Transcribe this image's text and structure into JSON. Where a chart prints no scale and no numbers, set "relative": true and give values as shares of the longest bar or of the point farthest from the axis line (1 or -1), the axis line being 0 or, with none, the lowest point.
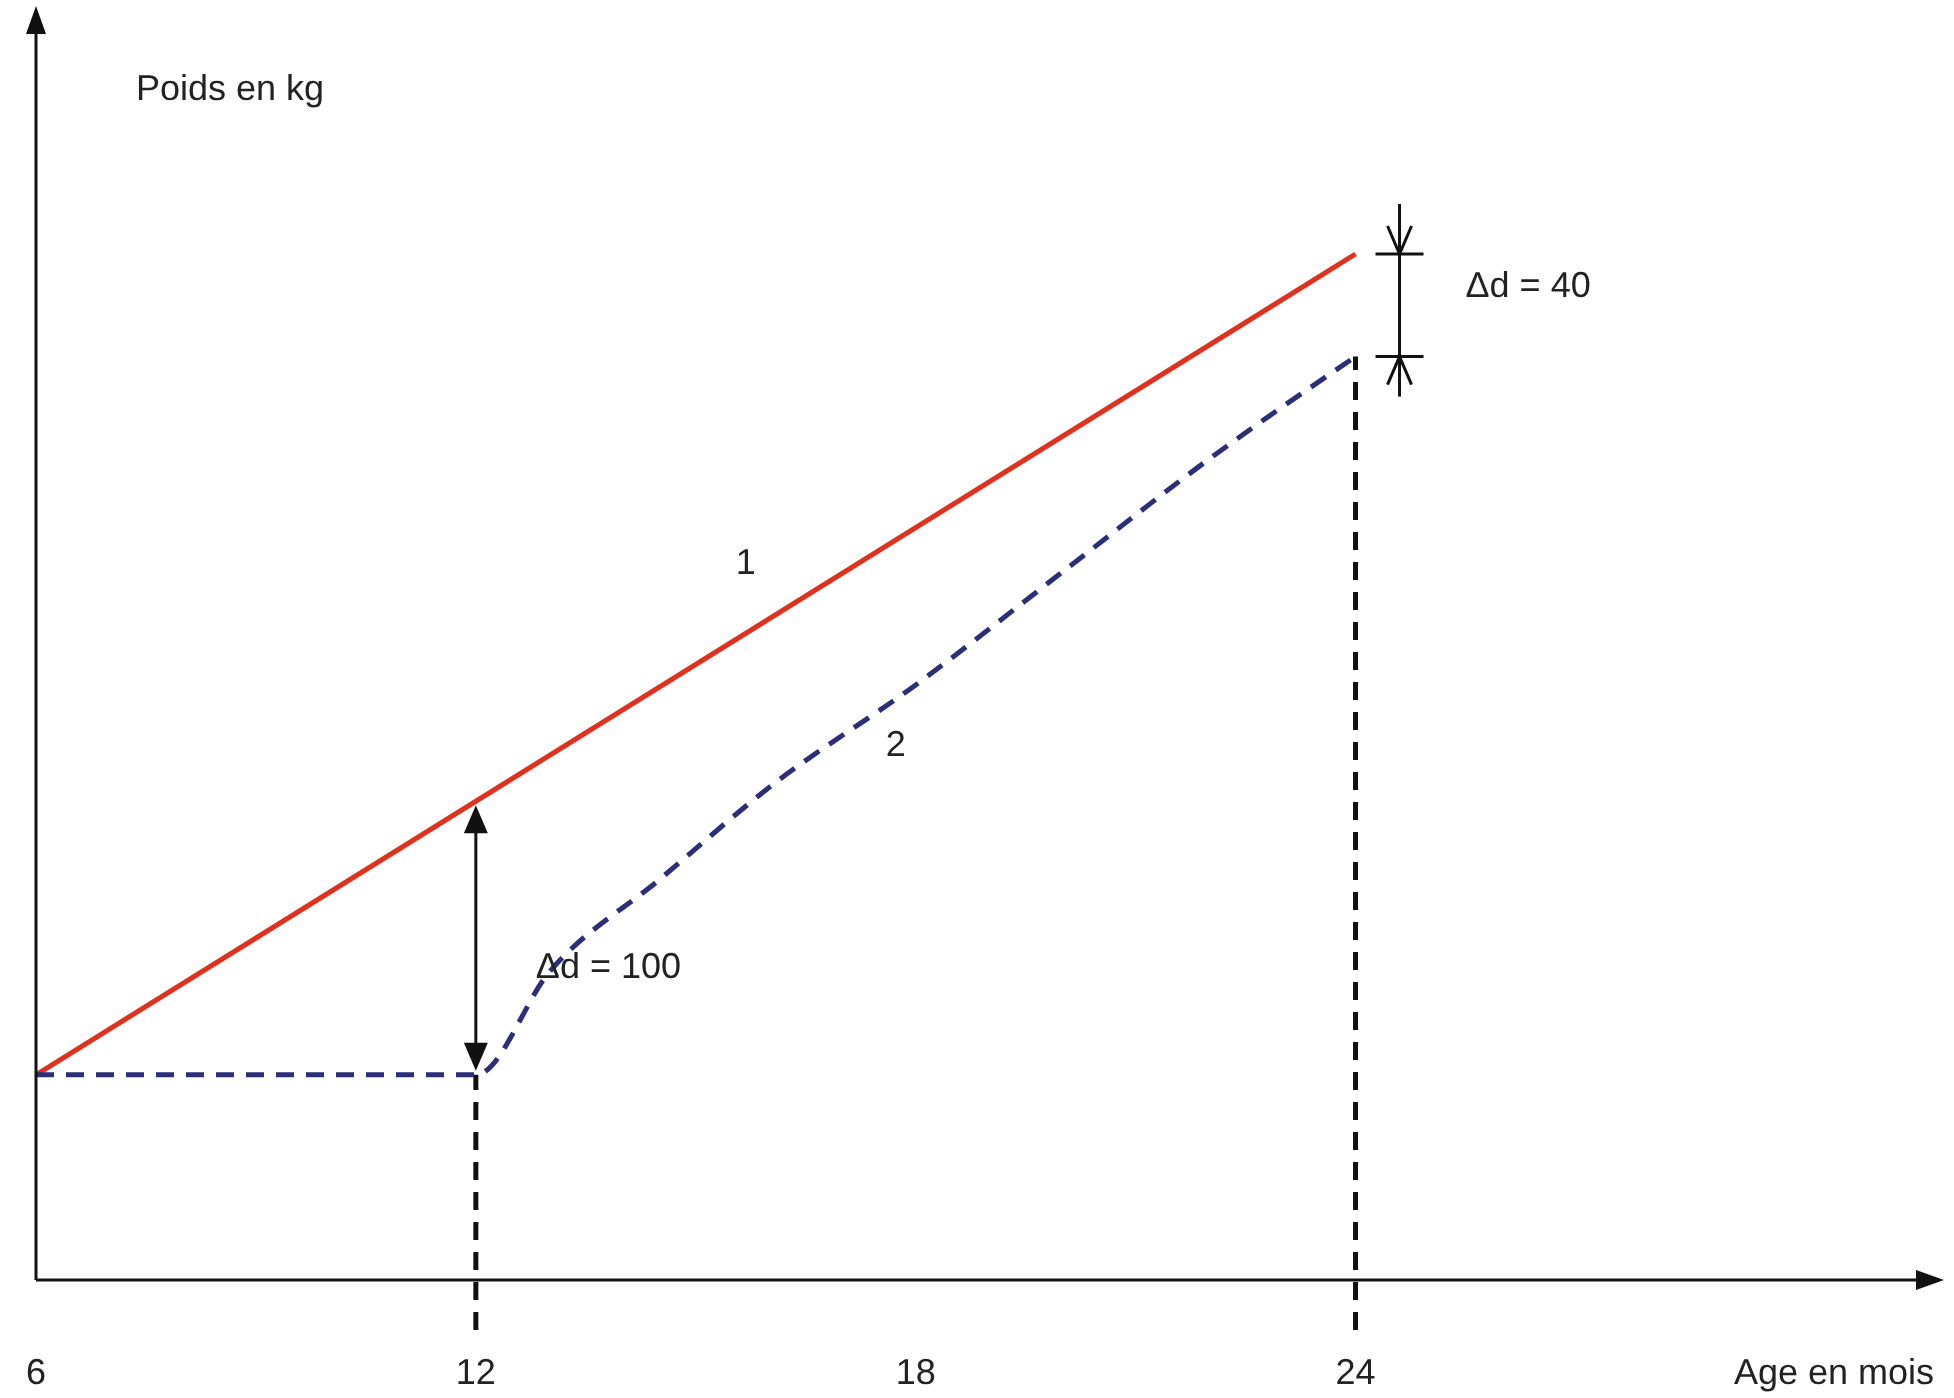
{
  "chart_data": {
    "type": "line",
    "xlabel": "Age en mois",
    "ylabel": "Poids en kg",
    "relative": true,
    "xlim": [
      6,
      31.7
    ],
    "xticks": [
      6,
      12,
      18,
      24
    ],
    "series": [
      {
        "name": "1",
        "color": "#e0301e",
        "x": [
          6,
          24
        ],
        "values": [
          0.2,
          1
        ],
        "line_style": "solid"
      },
      {
        "name": "2",
        "color": "#2b2f7a",
        "x": [
          6,
          12,
          13,
          14.5,
          16,
          18,
          20,
          22,
          24
        ],
        "values": [
          0.2,
          0.2,
          0.3,
          0.39,
          0.48,
          0.58,
          0.69,
          0.8,
          0.9
        ],
        "line_style": "dashed"
      }
    ],
    "ref_lines": [
      {
        "axis": "x",
        "value": 12,
        "line_style": "dashed",
        "color": "#111111"
      },
      {
        "axis": "x",
        "value": 24,
        "line_style": "dashed",
        "color": "#111111"
      }
    ],
    "annotations": [
      "Δd = 100",
      "Δd = 40"
    ],
    "legend": false,
    "grid": false,
    "marker": "none"
  }
}
